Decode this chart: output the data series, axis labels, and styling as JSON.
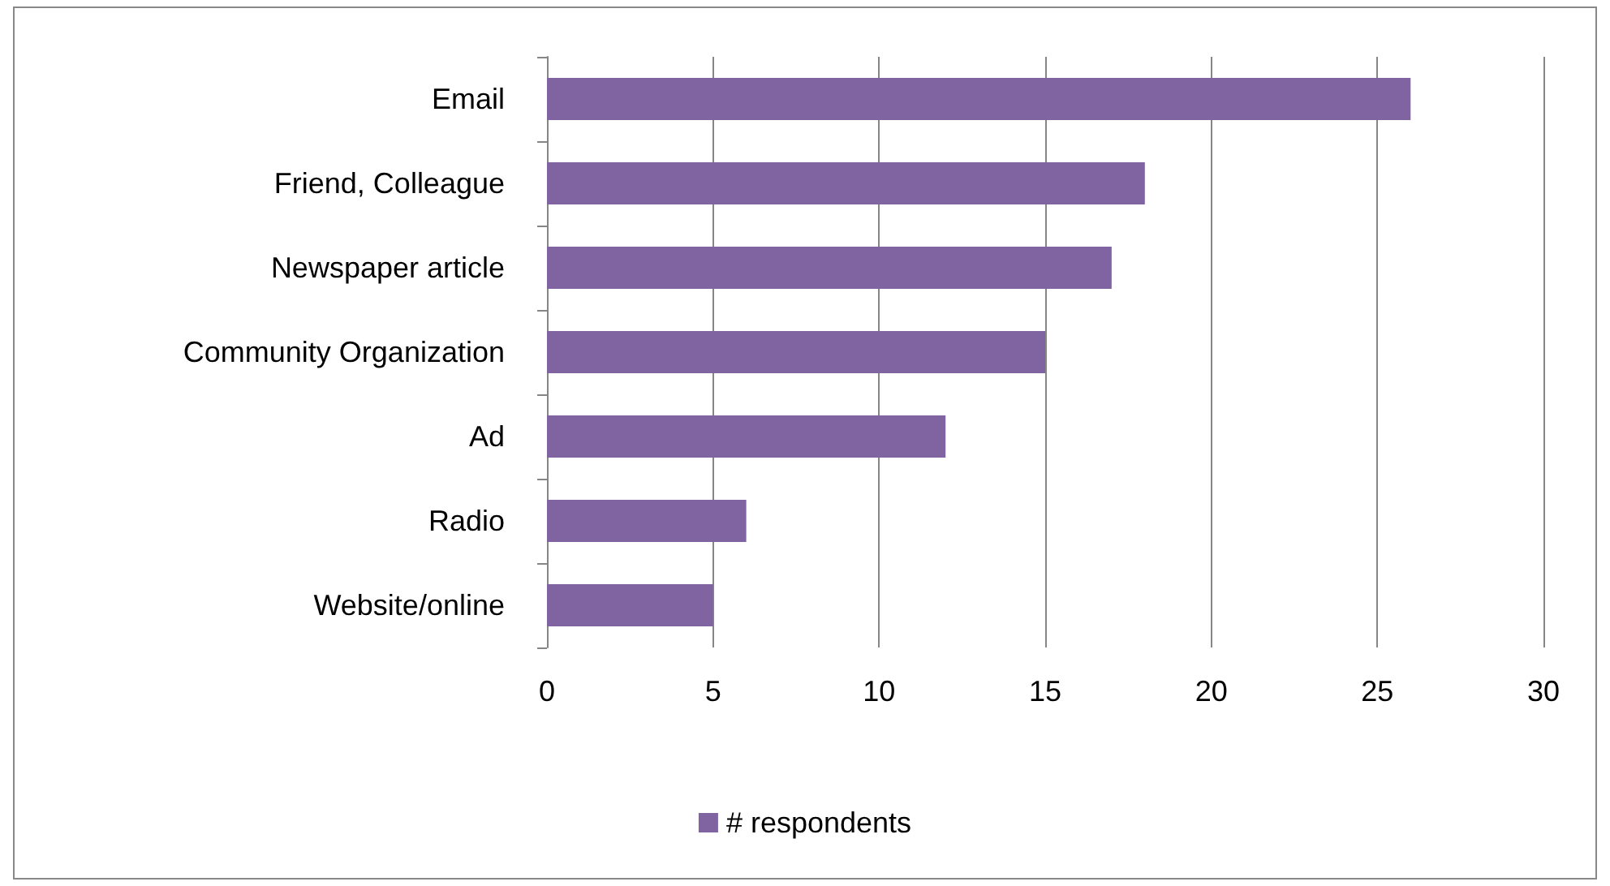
{
  "chart_data": {
    "type": "bar",
    "orientation": "horizontal",
    "categories": [
      "Email",
      "Friend, Colleague",
      "Newspaper article",
      "Community Organization",
      "Ad",
      "Radio",
      "Website/online"
    ],
    "series": [
      {
        "name": "# respondents",
        "color": "#8064a2",
        "values": [
          26,
          18,
          17,
          15,
          12,
          6,
          5
        ]
      }
    ],
    "xlim": [
      0,
      30
    ],
    "xticks": [
      0,
      5,
      10,
      15,
      20,
      25,
      30
    ],
    "grid": "x",
    "legend": "bottom"
  }
}
